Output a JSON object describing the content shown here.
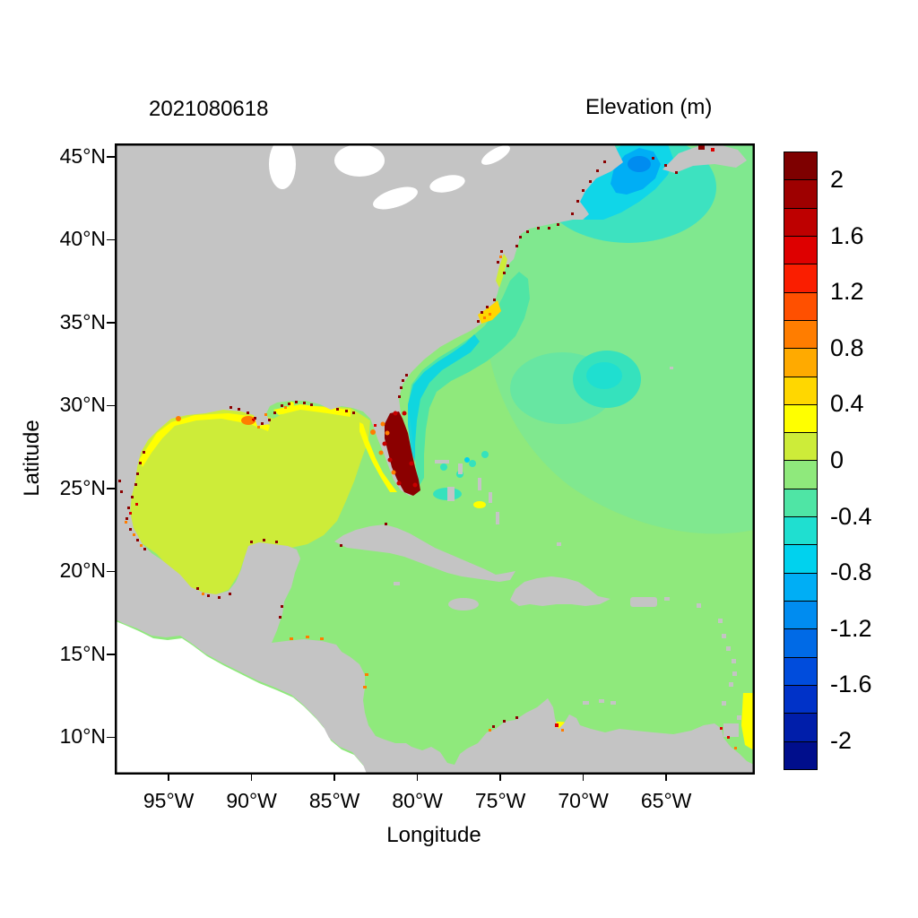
{
  "figure": {
    "date_label": "2021080618",
    "title": "Elevation (m)",
    "xlabel": "Longitude",
    "ylabel": "Latitude"
  },
  "axes": {
    "x_ticks": [
      {
        "label": "95°W",
        "lon": -95
      },
      {
        "label": "90°W",
        "lon": -90
      },
      {
        "label": "85°W",
        "lon": -85
      },
      {
        "label": "80°W",
        "lon": -80
      },
      {
        "label": "75°W",
        "lon": -75
      },
      {
        "label": "70°W",
        "lon": -70
      },
      {
        "label": "65°W",
        "lon": -65
      }
    ],
    "y_ticks": [
      {
        "label": "45°N",
        "lat": 45
      },
      {
        "label": "40°N",
        "lat": 40
      },
      {
        "label": "35°N",
        "lat": 35
      },
      {
        "label": "30°N",
        "lat": 30
      },
      {
        "label": "25°N",
        "lat": 25
      },
      {
        "label": "20°N",
        "lat": 20
      },
      {
        "label": "15°N",
        "lat": 15
      },
      {
        "label": "10°N",
        "lat": 10
      }
    ]
  },
  "colorbar": {
    "units": "m",
    "tick_labels": [
      "2",
      "1.6",
      "1.2",
      "0.8",
      "0.4",
      "0",
      "-0.4",
      "-0.8",
      "-1.2",
      "-1.6",
      "-2"
    ],
    "tick_values": [
      2,
      1.6,
      1.2,
      0.8,
      0.4,
      0,
      -0.4,
      -0.8,
      -1.2,
      -1.6,
      -2
    ],
    "value_min": -2.2,
    "value_max": 2.2,
    "level_step": 0.2,
    "colors_top_to_bottom": [
      "#7E0000",
      "#9E0000",
      "#BE0000",
      "#DE0000",
      "#FA1E00",
      "#FF5000",
      "#FF7D00",
      "#FFAA00",
      "#FFD700",
      "#FFFF00",
      "#CDEC39",
      "#8FE97C",
      "#4FE5A5",
      "#1FDFD0",
      "#00D2EE",
      "#00AEF5",
      "#008CF0",
      "#006AE6",
      "#004CDC",
      "#0032C8",
      "#001EAA",
      "#000E8C"
    ]
  },
  "map_colors": {
    "land": "#C4C4C4",
    "out_of_domain_and_lakes": "#FFFFFF",
    "ocean_background": "#8FE97C"
  },
  "chart_data": {
    "type": "heatmap",
    "title": "Elevation (m)",
    "timestamp_label": "2021080618",
    "xlabel": "Longitude",
    "ylabel": "Latitude",
    "lon_range_deg": [
      -98.3,
      -59.8
    ],
    "lat_range_deg": [
      8.1,
      45.8
    ],
    "x_tick_labels": [
      "95°W",
      "90°W",
      "85°W",
      "80°W",
      "75°W",
      "70°W",
      "65°W"
    ],
    "y_tick_labels": [
      "10°N",
      "15°N",
      "20°N",
      "25°N",
      "30°N",
      "35°N",
      "40°N",
      "45°N"
    ],
    "color_scale": {
      "min_m": -2.2,
      "max_m": 2.2,
      "step_m": 0.2,
      "labeled_ticks_m": [
        2,
        1.6,
        1.2,
        0.8,
        0.4,
        0,
        -0.4,
        -0.8,
        -1.2,
        -1.6,
        -2
      ]
    },
    "regions": [
      {
        "area": "Gulf of Mexico (central and western basin)",
        "approx_elevation_m": 0.25
      },
      {
        "area": "Northern Gulf coast shelf (TX-LA-MS-FL panhandle)",
        "approx_elevation_m": 0.5
      },
      {
        "area": "Mississippi delta and coastal marsh speckles",
        "approx_elevation_m": 1.8
      },
      {
        "area": "South Florida and Florida east coast",
        "approx_elevation_m": 2.1
      },
      {
        "area": "West Florida shelf",
        "approx_elevation_m": 0.45
      },
      {
        "area": "Caribbean Sea",
        "approx_elevation_m": 0.1
      },
      {
        "area": "Honduras-Nicaragua shelf",
        "approx_elevation_m": 0.45
      },
      {
        "area": "Venezuela coast near Lake Maracaibo",
        "approx_elevation_m": 0.5
      },
      {
        "area": "Orinoco / Trinidad right-edge strip",
        "approx_elevation_m": 0.4
      },
      {
        "area": "Open western Atlantic",
        "approx_elevation_m": -0.1
      },
      {
        "area": "Southeast US coastal band (Florida to Cape Hatteras)",
        "approx_elevation_m": -0.45
      },
      {
        "area": "Offshore mid-Atlantic eddy near 31N 68W",
        "approx_elevation_m": -0.5
      },
      {
        "area": "Gulf of Maine / Georges Bank",
        "approx_elevation_m": -0.9
      },
      {
        "area": "Pamlico Sound and Chesapeake Bay",
        "approx_elevation_m": 0.6
      },
      {
        "area": "Land (masked gray)",
        "approx_elevation_m": null
      }
    ]
  }
}
